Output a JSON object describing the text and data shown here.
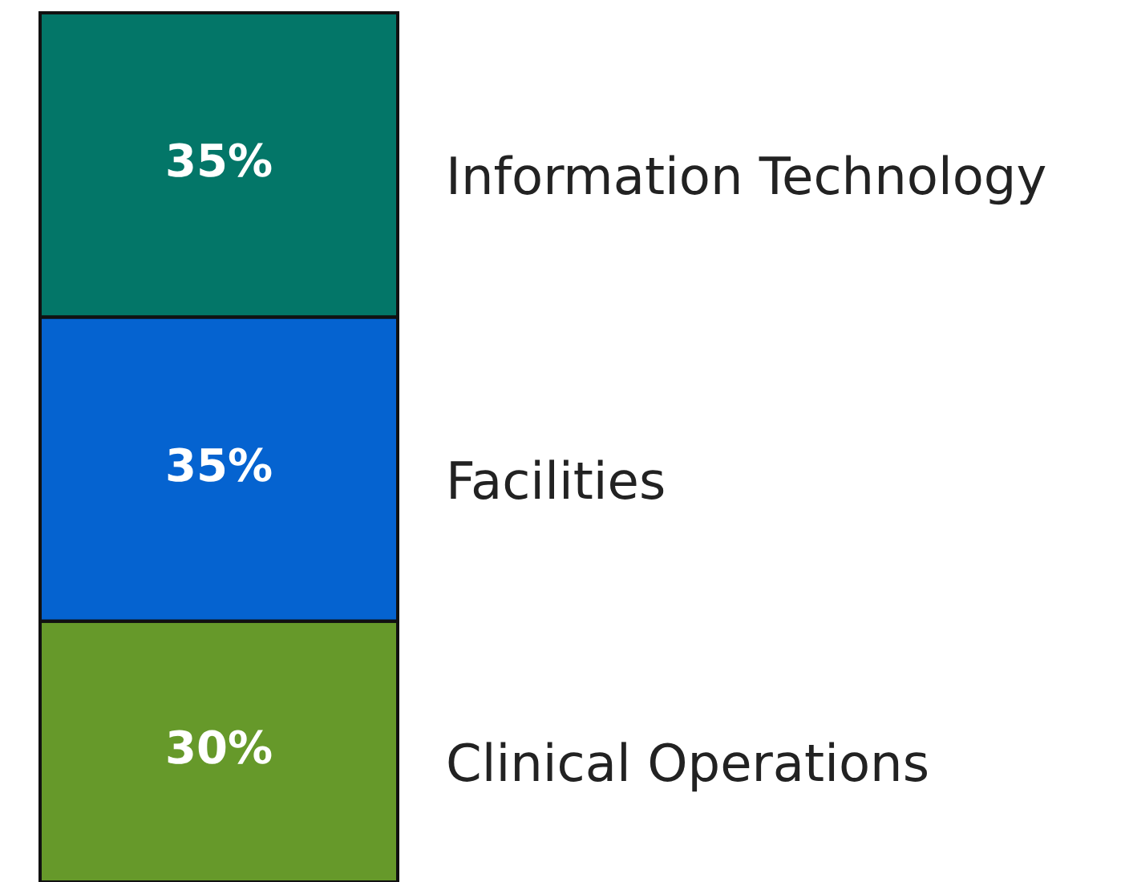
{
  "chart_data": {
    "type": "bar",
    "stacked": true,
    "categories": [
      null
    ],
    "legend": false,
    "series": [
      {
        "name": "Clinical Operations",
        "color": "#66992a",
        "values": [
          30
        ],
        "value_labels": [
          "30%"
        ]
      },
      {
        "name": "Facilities",
        "color": "#0563d0",
        "values": [
          35
        ],
        "value_labels": [
          "35%"
        ]
      },
      {
        "name": "Information Technology",
        "color": "#037668",
        "values": [
          35
        ],
        "value_labels": [
          "35%"
        ]
      }
    ]
  }
}
